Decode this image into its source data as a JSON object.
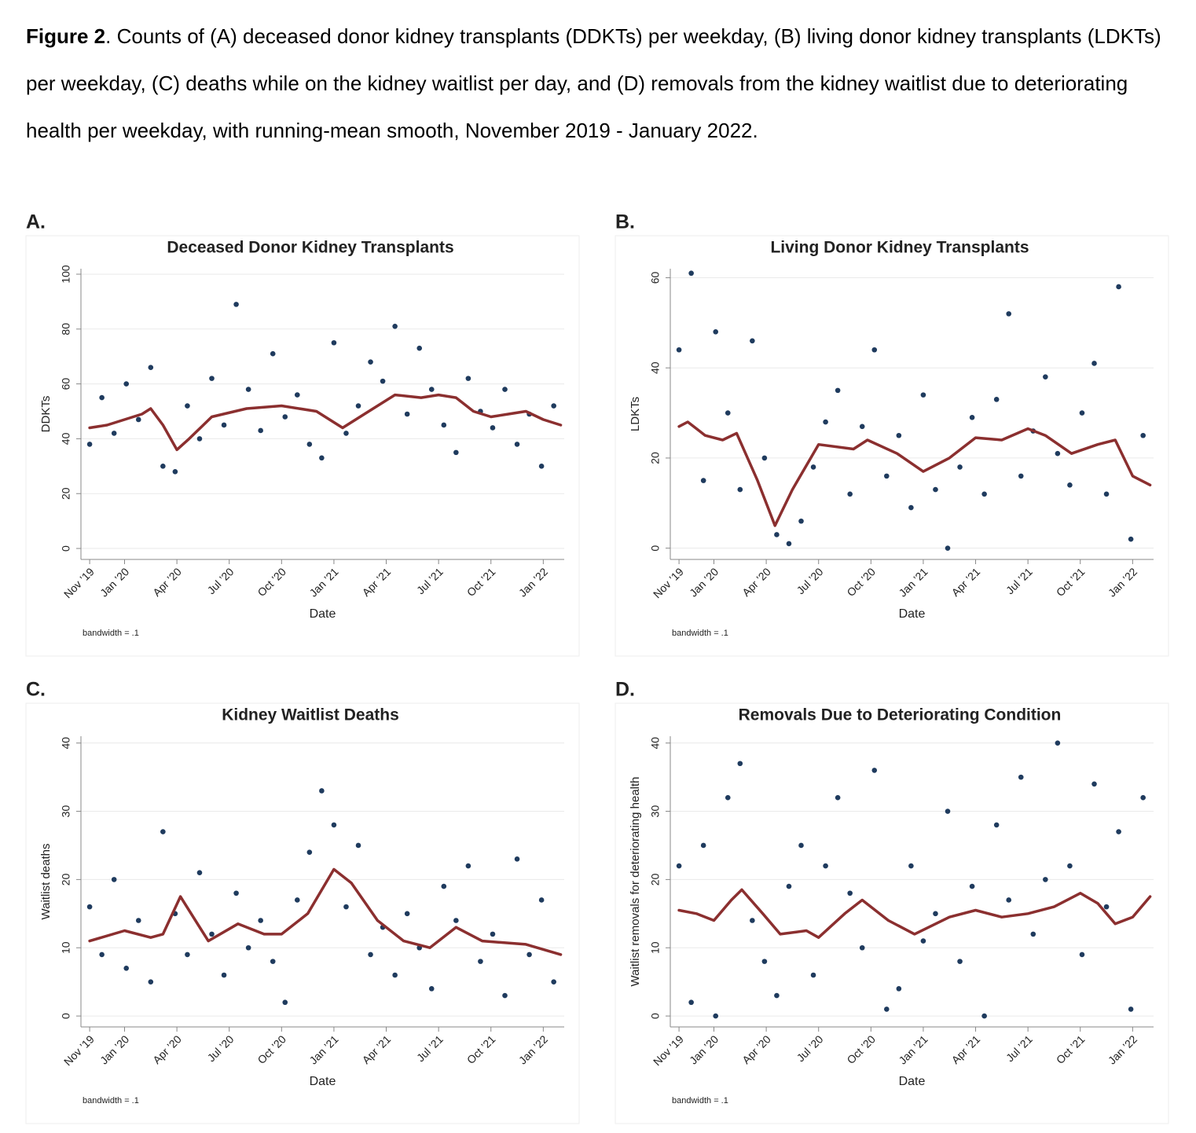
{
  "caption": {
    "label": "Figure 2",
    "text": ". Counts of (A) deceased donor kidney transplants (DDKTs) per weekday, (B) living donor kidney transplants (LDKTs) per weekday, (C) deaths while on the kidney waitlist per day, and (D) removals from the kidney waitlist due to deteriorating health per weekday, with running-mean smooth, November 2019 - January 2022."
  },
  "chart_data": [
    {
      "type": "scatter",
      "panel_label": "A.",
      "title": "Deceased Donor Kidney Transplants",
      "xlabel": "Date",
      "ylabel": "DDKTs",
      "note": "bandwidth = .1",
      "grid": true,
      "xlim": [
        -0.5,
        27.2
      ],
      "ylim": [
        -4,
        102
      ],
      "yticks": [
        0,
        20,
        40,
        60,
        80,
        100
      ],
      "xticks": [
        {
          "value": 0,
          "label": "Nov ’19"
        },
        {
          "value": 2,
          "label": "Jan ’20"
        },
        {
          "value": 5,
          "label": "Apr ’20"
        },
        {
          "value": 8,
          "label": "Jul ’20"
        },
        {
          "value": 11,
          "label": "Oct ’20"
        },
        {
          "value": 14,
          "label": "Jan ’21"
        },
        {
          "value": 17,
          "label": "Apr ’21"
        },
        {
          "value": 20,
          "label": "Jul ’21"
        },
        {
          "value": 23,
          "label": "Oct ’21"
        },
        {
          "value": 26,
          "label": "Jan ’22"
        }
      ],
      "series": [
        {
          "type": "scatter",
          "color": "#1f3b5e",
          "x": [
            0,
            0.7,
            1.4,
            2.1,
            2.8,
            3.5,
            4.2,
            4.9,
            5.6,
            6.3,
            7,
            7.7,
            8.4,
            9.1,
            9.8,
            10.5,
            11.2,
            11.9,
            12.6,
            13.3,
            14,
            14.7,
            15.4,
            16.1,
            16.8,
            17.5,
            18.2,
            18.9,
            19.6,
            20.3,
            21,
            21.7,
            22.4,
            23.1,
            23.8,
            24.5,
            25.2,
            25.9,
            26.6
          ],
          "values": [
            38,
            55,
            42,
            60,
            47,
            66,
            30,
            28,
            52,
            40,
            62,
            45,
            89,
            58,
            43,
            71,
            48,
            56,
            38,
            33,
            75,
            42,
            52,
            68,
            61,
            81,
            49,
            73,
            58,
            45,
            35,
            62,
            50,
            44,
            58,
            38,
            49,
            30,
            52
          ]
        },
        {
          "type": "line",
          "color": "#8b2f2f",
          "x": [
            0,
            1,
            2,
            3,
            3.5,
            4.2,
            5,
            5.7,
            7,
            9,
            11,
            13,
            14.5,
            16,
            17.5,
            19,
            20,
            21,
            22,
            23,
            24,
            25,
            26,
            27
          ],
          "values": [
            44,
            45,
            47,
            49,
            51,
            45,
            36,
            40,
            48,
            51,
            52,
            50,
            44,
            50,
            56,
            55,
            56,
            55,
            50,
            48,
            49,
            50,
            47,
            45
          ]
        }
      ]
    },
    {
      "type": "scatter",
      "panel_label": "B.",
      "title": "Living Donor Kidney Transplants",
      "xlabel": "Date",
      "ylabel": "LDKTs",
      "note": "bandwidth = .1",
      "grid": true,
      "xlim": [
        -0.5,
        27.2
      ],
      "ylim": [
        -2.5,
        62
      ],
      "yticks": [
        0,
        20,
        40,
        60
      ],
      "xticks": [
        {
          "value": 0,
          "label": "Nov ’19"
        },
        {
          "value": 2,
          "label": "Jan ’20"
        },
        {
          "value": 5,
          "label": "Apr ’20"
        },
        {
          "value": 8,
          "label": "Jul ’20"
        },
        {
          "value": 11,
          "label": "Oct ’20"
        },
        {
          "value": 14,
          "label": "Jan ’21"
        },
        {
          "value": 17,
          "label": "Apr ’21"
        },
        {
          "value": 20,
          "label": "Jul ’21"
        },
        {
          "value": 23,
          "label": "Oct ’21"
        },
        {
          "value": 26,
          "label": "Jan ’22"
        }
      ],
      "series": [
        {
          "type": "scatter",
          "color": "#1f3b5e",
          "x": [
            0,
            0.7,
            1.4,
            2.1,
            2.8,
            3.5,
            4.2,
            4.9,
            5.6,
            6.3,
            7,
            7.7,
            8.4,
            9.1,
            9.8,
            10.5,
            11.2,
            11.9,
            12.6,
            13.3,
            14,
            14.7,
            15.4,
            16.1,
            16.8,
            17.5,
            18.2,
            18.9,
            19.6,
            20.3,
            21,
            21.7,
            22.4,
            23.1,
            23.8,
            24.5,
            25.2,
            25.9,
            26.6
          ],
          "values": [
            44,
            61,
            15,
            48,
            30,
            13,
            46,
            20,
            3,
            1,
            6,
            18,
            28,
            35,
            12,
            27,
            44,
            16,
            25,
            9,
            34,
            13,
            0,
            18,
            29,
            12,
            33,
            52,
            16,
            26,
            38,
            21,
            14,
            30,
            41,
            12,
            58,
            2,
            25
          ]
        },
        {
          "type": "line",
          "color": "#8b2f2f",
          "x": [
            0,
            0.5,
            1.5,
            2.5,
            3.3,
            4.5,
            5.5,
            6.5,
            8,
            10,
            10.8,
            12.5,
            14,
            15.5,
            17,
            18.5,
            20,
            21,
            22.5,
            24,
            25,
            26,
            27
          ],
          "values": [
            27,
            28,
            25,
            24,
            25.5,
            15,
            5,
            13,
            23,
            22,
            24,
            21,
            17,
            20,
            24.5,
            24,
            26.5,
            25,
            21,
            23,
            24,
            16,
            14
          ]
        }
      ]
    },
    {
      "type": "scatter",
      "panel_label": "C.",
      "title": "Kidney Waitlist Deaths",
      "xlabel": "Date",
      "ylabel": "Waitlist deaths",
      "note": "bandwidth = .1",
      "grid": true,
      "xlim": [
        -0.5,
        27.2
      ],
      "ylim": [
        -1.6,
        41
      ],
      "yticks": [
        0,
        10,
        20,
        30,
        40
      ],
      "xticks": [
        {
          "value": 0,
          "label": "Nov ’19"
        },
        {
          "value": 2,
          "label": "Jan ’20"
        },
        {
          "value": 5,
          "label": "Apr ’20"
        },
        {
          "value": 8,
          "label": "Jul ’20"
        },
        {
          "value": 11,
          "label": "Oct ’20"
        },
        {
          "value": 14,
          "label": "Jan ’21"
        },
        {
          "value": 17,
          "label": "Apr ’21"
        },
        {
          "value": 20,
          "label": "Jul ’21"
        },
        {
          "value": 23,
          "label": "Oct ’21"
        },
        {
          "value": 26,
          "label": "Jan ’22"
        }
      ],
      "series": [
        {
          "type": "scatter",
          "color": "#1f3b5e",
          "x": [
            0,
            0.7,
            1.4,
            2.1,
            2.8,
            3.5,
            4.2,
            4.9,
            5.6,
            6.3,
            7,
            7.7,
            8.4,
            9.1,
            9.8,
            10.5,
            11.2,
            11.9,
            12.6,
            13.3,
            14,
            14.7,
            15.4,
            16.1,
            16.8,
            17.5,
            18.2,
            18.9,
            19.6,
            20.3,
            21,
            21.7,
            22.4,
            23.1,
            23.8,
            24.5,
            25.2,
            25.9,
            26.6
          ],
          "values": [
            16,
            9,
            20,
            7,
            14,
            5,
            27,
            15,
            9,
            21,
            12,
            6,
            18,
            10,
            14,
            8,
            2,
            17,
            24,
            33,
            28,
            16,
            25,
            9,
            13,
            6,
            15,
            10,
            4,
            19,
            14,
            22,
            8,
            12,
            3,
            23,
            9,
            17,
            5
          ]
        },
        {
          "type": "line",
          "color": "#8b2f2f",
          "x": [
            0,
            2,
            3.5,
            4.2,
            5.2,
            6.8,
            8.5,
            10,
            11,
            12.5,
            14,
            15,
            16.5,
            18,
            19.5,
            21,
            22.5,
            25,
            27
          ],
          "values": [
            11,
            12.5,
            11.5,
            12,
            17.5,
            11,
            13.5,
            12,
            12,
            15,
            21.5,
            19.5,
            14,
            11,
            10,
            13,
            11,
            10.5,
            9
          ]
        }
      ]
    },
    {
      "type": "scatter",
      "panel_label": "D.",
      "title": "Removals Due to Deteriorating Condition",
      "xlabel": "Date",
      "ylabel": "Waitlist removals for deteriorating health",
      "note": "bandwidth = .1",
      "grid": true,
      "xlim": [
        -0.5,
        27.2
      ],
      "ylim": [
        -1.6,
        41
      ],
      "yticks": [
        0,
        10,
        20,
        30,
        40
      ],
      "xticks": [
        {
          "value": 0,
          "label": "Nov ’19"
        },
        {
          "value": 2,
          "label": "Jan ’20"
        },
        {
          "value": 5,
          "label": "Apr ’20"
        },
        {
          "value": 8,
          "label": "Jul ’20"
        },
        {
          "value": 11,
          "label": "Oct ’20"
        },
        {
          "value": 14,
          "label": "Jan ’21"
        },
        {
          "value": 17,
          "label": "Apr ’21"
        },
        {
          "value": 20,
          "label": "Jul ’21"
        },
        {
          "value": 23,
          "label": "Oct ’21"
        },
        {
          "value": 26,
          "label": "Jan ’22"
        }
      ],
      "series": [
        {
          "type": "scatter",
          "color": "#1f3b5e",
          "x": [
            0,
            0.7,
            1.4,
            2.1,
            2.8,
            3.5,
            4.2,
            4.9,
            5.6,
            6.3,
            7,
            7.7,
            8.4,
            9.1,
            9.8,
            10.5,
            11.2,
            11.9,
            12.6,
            13.3,
            14,
            14.7,
            15.4,
            16.1,
            16.8,
            17.5,
            18.2,
            18.9,
            19.6,
            20.3,
            21,
            21.7,
            22.4,
            23.1,
            23.8,
            24.5,
            25.2,
            25.9,
            26.6
          ],
          "values": [
            22,
            2,
            25,
            0,
            32,
            37,
            14,
            8,
            3,
            19,
            25,
            6,
            22,
            32,
            18,
            10,
            36,
            1,
            4,
            22,
            11,
            15,
            30,
            8,
            19,
            0,
            28,
            17,
            35,
            12,
            20,
            40,
            22,
            9,
            34,
            16,
            27,
            1,
            32
          ]
        },
        {
          "type": "line",
          "color": "#8b2f2f",
          "x": [
            0,
            1,
            2,
            3,
            3.6,
            4.8,
            5.8,
            7.3,
            8,
            9.5,
            10.5,
            12,
            13.5,
            15.5,
            17,
            18.5,
            20,
            21.5,
            23,
            24,
            25,
            26,
            27
          ],
          "values": [
            15.5,
            15,
            14,
            17,
            18.5,
            15,
            12,
            12.5,
            11.5,
            15,
            17,
            14,
            12,
            14.5,
            15.5,
            14.5,
            15,
            16,
            18,
            16.5,
            13.5,
            14.5,
            17.5
          ]
        }
      ]
    }
  ]
}
